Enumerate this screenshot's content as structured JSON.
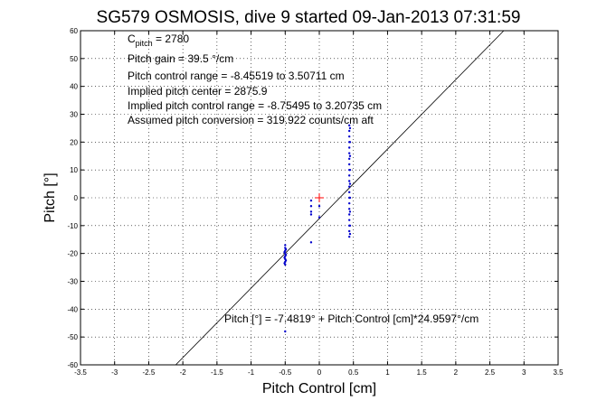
{
  "chart_data": {
    "type": "scatter",
    "title": "SG579 OSMOSIS, dive 9 started 09-Jan-2013 07:31:59",
    "xlabel": "Pitch Control [cm]",
    "ylabel": "Pitch [°]",
    "xlim": [
      -3.5,
      3.5
    ],
    "ylim": [
      -60,
      60
    ],
    "xticks": [
      "-3.5",
      "-3",
      "-2.5",
      "-2",
      "-1.5",
      "-1",
      "-0.5",
      "0",
      "0.5",
      "1",
      "1.5",
      "2",
      "2.5",
      "3",
      "3.5"
    ],
    "yticks": [
      "60",
      "50",
      "40",
      "30",
      "20",
      "10",
      "0",
      "-10",
      "-20",
      "-30",
      "-40",
      "-50",
      "-60"
    ],
    "grid": true,
    "annotations": {
      "c_pitch_prefix": "C",
      "c_pitch_sub": "pitch",
      "c_pitch_value": " = 2780",
      "pitch_gain": "Pitch gain = 39.5 °/cm",
      "pitch_control_range": "Pitch control range = -8.45519 to 3.50711 cm",
      "implied_pitch_center": "Implied pitch center = 2875.9",
      "implied_pitch_control_range": "Implied pitch control range = -8.75495 to 3.20735 cm",
      "assumed_pitch_conversion": "Assumed pitch conversion = 319.922 counts/cm aft",
      "fit_equation": "Pitch [°] = -7.4819° + Pitch Control [cm]*24.9597°/cm"
    },
    "fit_line": {
      "intercept": -7.4819,
      "slope": 24.9597,
      "color": "#000000"
    },
    "center_marker": {
      "x": 0.0,
      "y": 0.0,
      "color": "#ff0000"
    },
    "series": [
      {
        "color": "#0000cc",
        "points": [
          [
            0.44,
            26
          ],
          [
            0.44,
            24
          ],
          [
            0.44,
            22
          ],
          [
            0.44,
            20
          ],
          [
            0.44,
            18
          ],
          [
            0.44,
            16
          ],
          [
            0.44,
            14
          ],
          [
            0.44,
            12
          ],
          [
            0.44,
            10
          ],
          [
            0.44,
            8
          ],
          [
            0.44,
            6
          ],
          [
            0.44,
            4
          ],
          [
            0.44,
            2
          ],
          [
            0.44,
            0
          ],
          [
            0.44,
            -2
          ],
          [
            0.44,
            -4
          ],
          [
            0.44,
            -6
          ],
          [
            0.44,
            -8
          ],
          [
            0.44,
            -10
          ],
          [
            0.44,
            -12
          ],
          [
            0.44,
            -14
          ],
          [
            0.45,
            25
          ],
          [
            0.45,
            20
          ],
          [
            0.45,
            15
          ],
          [
            0.45,
            10
          ],
          [
            0.45,
            5
          ],
          [
            0.45,
            0
          ],
          [
            0.45,
            -5
          ],
          [
            0.45,
            -10
          ],
          [
            0.45,
            -13
          ],
          [
            -0.5,
            -17
          ],
          [
            -0.5,
            -18
          ],
          [
            -0.5,
            -19
          ],
          [
            -0.5,
            -20
          ],
          [
            -0.5,
            -21
          ],
          [
            -0.5,
            -22
          ],
          [
            -0.5,
            -23
          ],
          [
            -0.5,
            -24
          ],
          [
            -0.49,
            -18.5
          ],
          [
            -0.49,
            -20.5
          ],
          [
            -0.49,
            -22.5
          ],
          [
            -0.51,
            -19.5
          ],
          [
            -0.51,
            -21.5
          ],
          [
            -0.51,
            -23.5
          ],
          [
            -0.5,
            -48
          ],
          [
            -0.12,
            -1
          ],
          [
            -0.12,
            -3
          ],
          [
            -0.12,
            -5
          ],
          [
            -0.12,
            -6
          ],
          [
            -0.12,
            -16
          ],
          [
            0.0,
            -3
          ],
          [
            0.0,
            -7
          ]
        ]
      }
    ]
  }
}
